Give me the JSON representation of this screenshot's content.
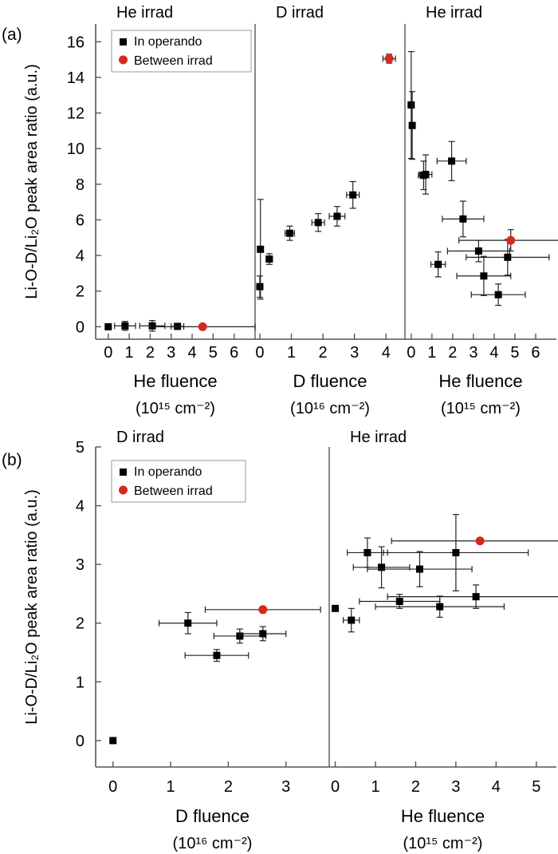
{
  "chart_data": [
    {
      "type": "scatter",
      "panel_label": "(a)",
      "ylabel": "Li-O-D/Li₂O peak area ratio (a.u.)",
      "ylim": [
        -0.7,
        17
      ],
      "yticks": [
        0,
        2,
        4,
        6,
        8,
        10,
        12,
        14,
        16
      ],
      "legend": {
        "placement": "top-left",
        "entries": [
          "In operando",
          "Between irrad"
        ]
      },
      "colors": {
        "in_operando": "#000000",
        "between_irrad": "#d42a1c"
      },
      "subpanels": [
        {
          "title": "He irrad",
          "xlabel": "He fluence",
          "xunit": "(10¹⁵ cm⁻²)",
          "xlim": [
            -0.6,
            7.0
          ],
          "xticks": [
            "0",
            "1",
            "2",
            "3",
            "4",
            "5",
            "6"
          ],
          "series": [
            {
              "name": "In operando",
              "points": [
                [
                  0,
                  0,
                  0,
                  0
                ],
                [
                  0.8,
                  0.05,
                  0.5,
                  0.25
                ],
                [
                  2.1,
                  0.05,
                  0.6,
                  0.3
                ],
                [
                  3.3,
                  0.02,
                  0.3,
                  0
                ]
              ]
            },
            {
              "name": "Between irrad",
              "points": [
                [
                  4.5,
                  0.0,
                  2.5,
                  0
                ]
              ]
            }
          ]
        },
        {
          "title": "D irrad",
          "xlabel": "D fluence",
          "xunit": "(10¹⁶ cm⁻²)",
          "xlim": [
            -0.15,
            4.6
          ],
          "xticks": [
            "0",
            "1",
            "2",
            "3",
            "4"
          ],
          "series": [
            {
              "name": "In operando",
              "points": [
                [
                  0,
                  2.25,
                  0,
                  0.6
                ],
                [
                  0.02,
                  4.35,
                  0,
                  2.8
                ],
                [
                  0.3,
                  3.8,
                  0.1,
                  0.3
                ],
                [
                  0.95,
                  5.25,
                  0.15,
                  0.4
                ],
                [
                  1.85,
                  5.85,
                  0.2,
                  0.5
                ],
                [
                  2.45,
                  6.2,
                  0.25,
                  0.55
                ],
                [
                  2.95,
                  7.4,
                  0.2,
                  0.75
                ]
              ]
            },
            {
              "name": "Between irrad",
              "points": [
                [
                  4.1,
                  15.05,
                  0.2,
                  0.25
                ]
              ]
            }
          ]
        },
        {
          "title": "He irrad",
          "xlabel": "He fluence",
          "xunit": "(10¹⁵ cm⁻²)",
          "xlim": [
            -0.3,
            7.0
          ],
          "xticks": [
            "0",
            "1",
            "2",
            "3",
            "4",
            "5",
            "6"
          ],
          "series": [
            {
              "name": "In operando",
              "points": [
                [
                  0,
                  12.45,
                  0,
                  3.0
                ],
                [
                  0.05,
                  11.3,
                  0,
                  1.9
                ],
                [
                  0.6,
                  8.5,
                  0.25,
                  0.8
                ],
                [
                  0.7,
                  8.55,
                  0.3,
                  1.1
                ],
                [
                  1.3,
                  3.5,
                  0.35,
                  0.7
                ],
                [
                  1.95,
                  9.3,
                  0.7,
                  1.1
                ],
                [
                  2.5,
                  6.05,
                  1.0,
                  1.0
                ],
                [
                  3.25,
                  4.25,
                  1.5,
                  0.6
                ],
                [
                  3.5,
                  2.85,
                  1.3,
                  1.1
                ],
                [
                  4.2,
                  1.8,
                  1.3,
                  0.6
                ],
                [
                  4.65,
                  3.9,
                  2.0,
                  1.0
                ]
              ]
            },
            {
              "name": "Between irrad",
              "points": [
                [
                  4.8,
                  4.85,
                  2.5,
                  0.6
                ]
              ]
            }
          ]
        }
      ]
    },
    {
      "type": "scatter",
      "panel_label": "(b)",
      "ylabel": "Li-O-D/Li₂O peak area ratio (a.u.)",
      "ylim": [
        -0.45,
        5
      ],
      "yticks": [
        0,
        1,
        2,
        3,
        4,
        5
      ],
      "legend": {
        "placement": "top-left",
        "entries": [
          "In operando",
          "Between irrad"
        ]
      },
      "colors": {
        "in_operando": "#000000",
        "between_irrad": "#d42a1c"
      },
      "subpanels": [
        {
          "title": "D irrad",
          "xlabel": "D fluence",
          "xunit": "(10¹⁶ cm⁻²)",
          "xlim": [
            -0.3,
            3.75
          ],
          "xticks": [
            "0",
            "1",
            "2",
            "3"
          ],
          "series": [
            {
              "name": "In operando",
              "points": [
                [
                  0,
                  0,
                  0,
                  0
                ],
                [
                  1.3,
                  2.0,
                  0.5,
                  0.18
                ],
                [
                  1.8,
                  1.45,
                  0.55,
                  0.1
                ],
                [
                  2.2,
                  1.78,
                  0.45,
                  0.12
                ],
                [
                  2.6,
                  1.82,
                  0.4,
                  0.12
                ]
              ]
            },
            {
              "name": "Between irrad",
              "points": [
                [
                  2.6,
                  2.23,
                  1.0,
                  0
                ]
              ]
            }
          ]
        },
        {
          "title": "He irrad",
          "xlabel": "He fluence",
          "xunit": "(10¹⁵ cm⁻²)",
          "xlim": [
            -0.15,
            5.5
          ],
          "xticks": [
            "0",
            "1",
            "2",
            "3",
            "4",
            "5"
          ],
          "series": [
            {
              "name": "In operando",
              "points": [
                [
                  0,
                  2.25,
                  0,
                  0
                ],
                [
                  0.4,
                  2.05,
                  0.2,
                  0.2
                ],
                [
                  0.8,
                  3.2,
                  0.5,
                  0.25
                ],
                [
                  1.15,
                  2.95,
                  0.7,
                  0.35
                ],
                [
                  1.6,
                  2.37,
                  1.0,
                  0.12
                ],
                [
                  2.1,
                  2.92,
                  1.3,
                  0.3
                ],
                [
                  2.6,
                  2.28,
                  1.6,
                  0.18
                ],
                [
                  3.0,
                  3.2,
                  1.8,
                  0.65
                ],
                [
                  3.5,
                  2.45,
                  2.2,
                  0.2
                ]
              ]
            },
            {
              "name": "Between irrad",
              "points": [
                [
                  3.6,
                  3.4,
                  2.2,
                  0
                ]
              ]
            }
          ]
        }
      ]
    }
  ]
}
